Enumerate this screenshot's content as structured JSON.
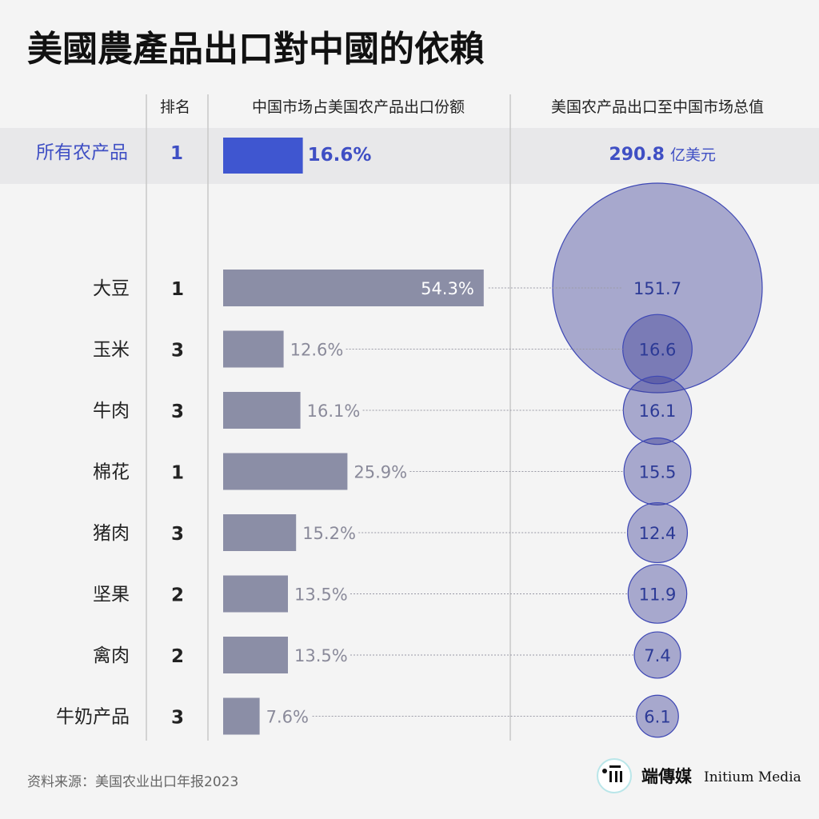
{
  "title": "美國農產品出口對中國的依賴",
  "headers": {
    "rank": "排名",
    "share": "中国市场占美国农产品出口份额",
    "value": "美国农产品出口至中国市场总值"
  },
  "total": {
    "name": "所有农产品",
    "rank": "1",
    "share": 16.6,
    "share_label": "16.6%",
    "value_label": "290.8",
    "unit": "亿美元"
  },
  "chart_data": {
    "type": "bar",
    "categories": [
      "大豆",
      "玉米",
      "牛肉",
      "棉花",
      "猪肉",
      "坚果",
      "禽肉",
      "牛奶产品"
    ],
    "ranks": [
      "1",
      "3",
      "3",
      "1",
      "3",
      "2",
      "2",
      "3"
    ],
    "series": [
      {
        "values": [
          54.3,
          12.6,
          16.1,
          25.9,
          15.2,
          13.5,
          13.5,
          7.6
        ],
        "labels": [
          "54.3%",
          "12.6%",
          "16.1%",
          "25.9%",
          "15.2%",
          "13.5%",
          "13.5%",
          "7.6%"
        ]
      },
      {
        "values": [
          151.7,
          16.6,
          16.1,
          15.5,
          12.4,
          11.9,
          7.4,
          6.1
        ],
        "labels": [
          "151.7",
          "16.6",
          "16.1",
          "15.5",
          "12.4",
          "11.9",
          "7.4",
          "6.1"
        ]
      }
    ]
  },
  "colors": {
    "bar": "#8b8ea6",
    "total_bar": "#3f56d0",
    "bubble_fill": "#3b3f95",
    "bubble_stroke": "#3d47b5",
    "accent": "#3f4fc4"
  },
  "source": "资料来源：美国农业出口年报2023",
  "brand": {
    "cn": "端傳媒",
    "en": "Initium Media"
  }
}
